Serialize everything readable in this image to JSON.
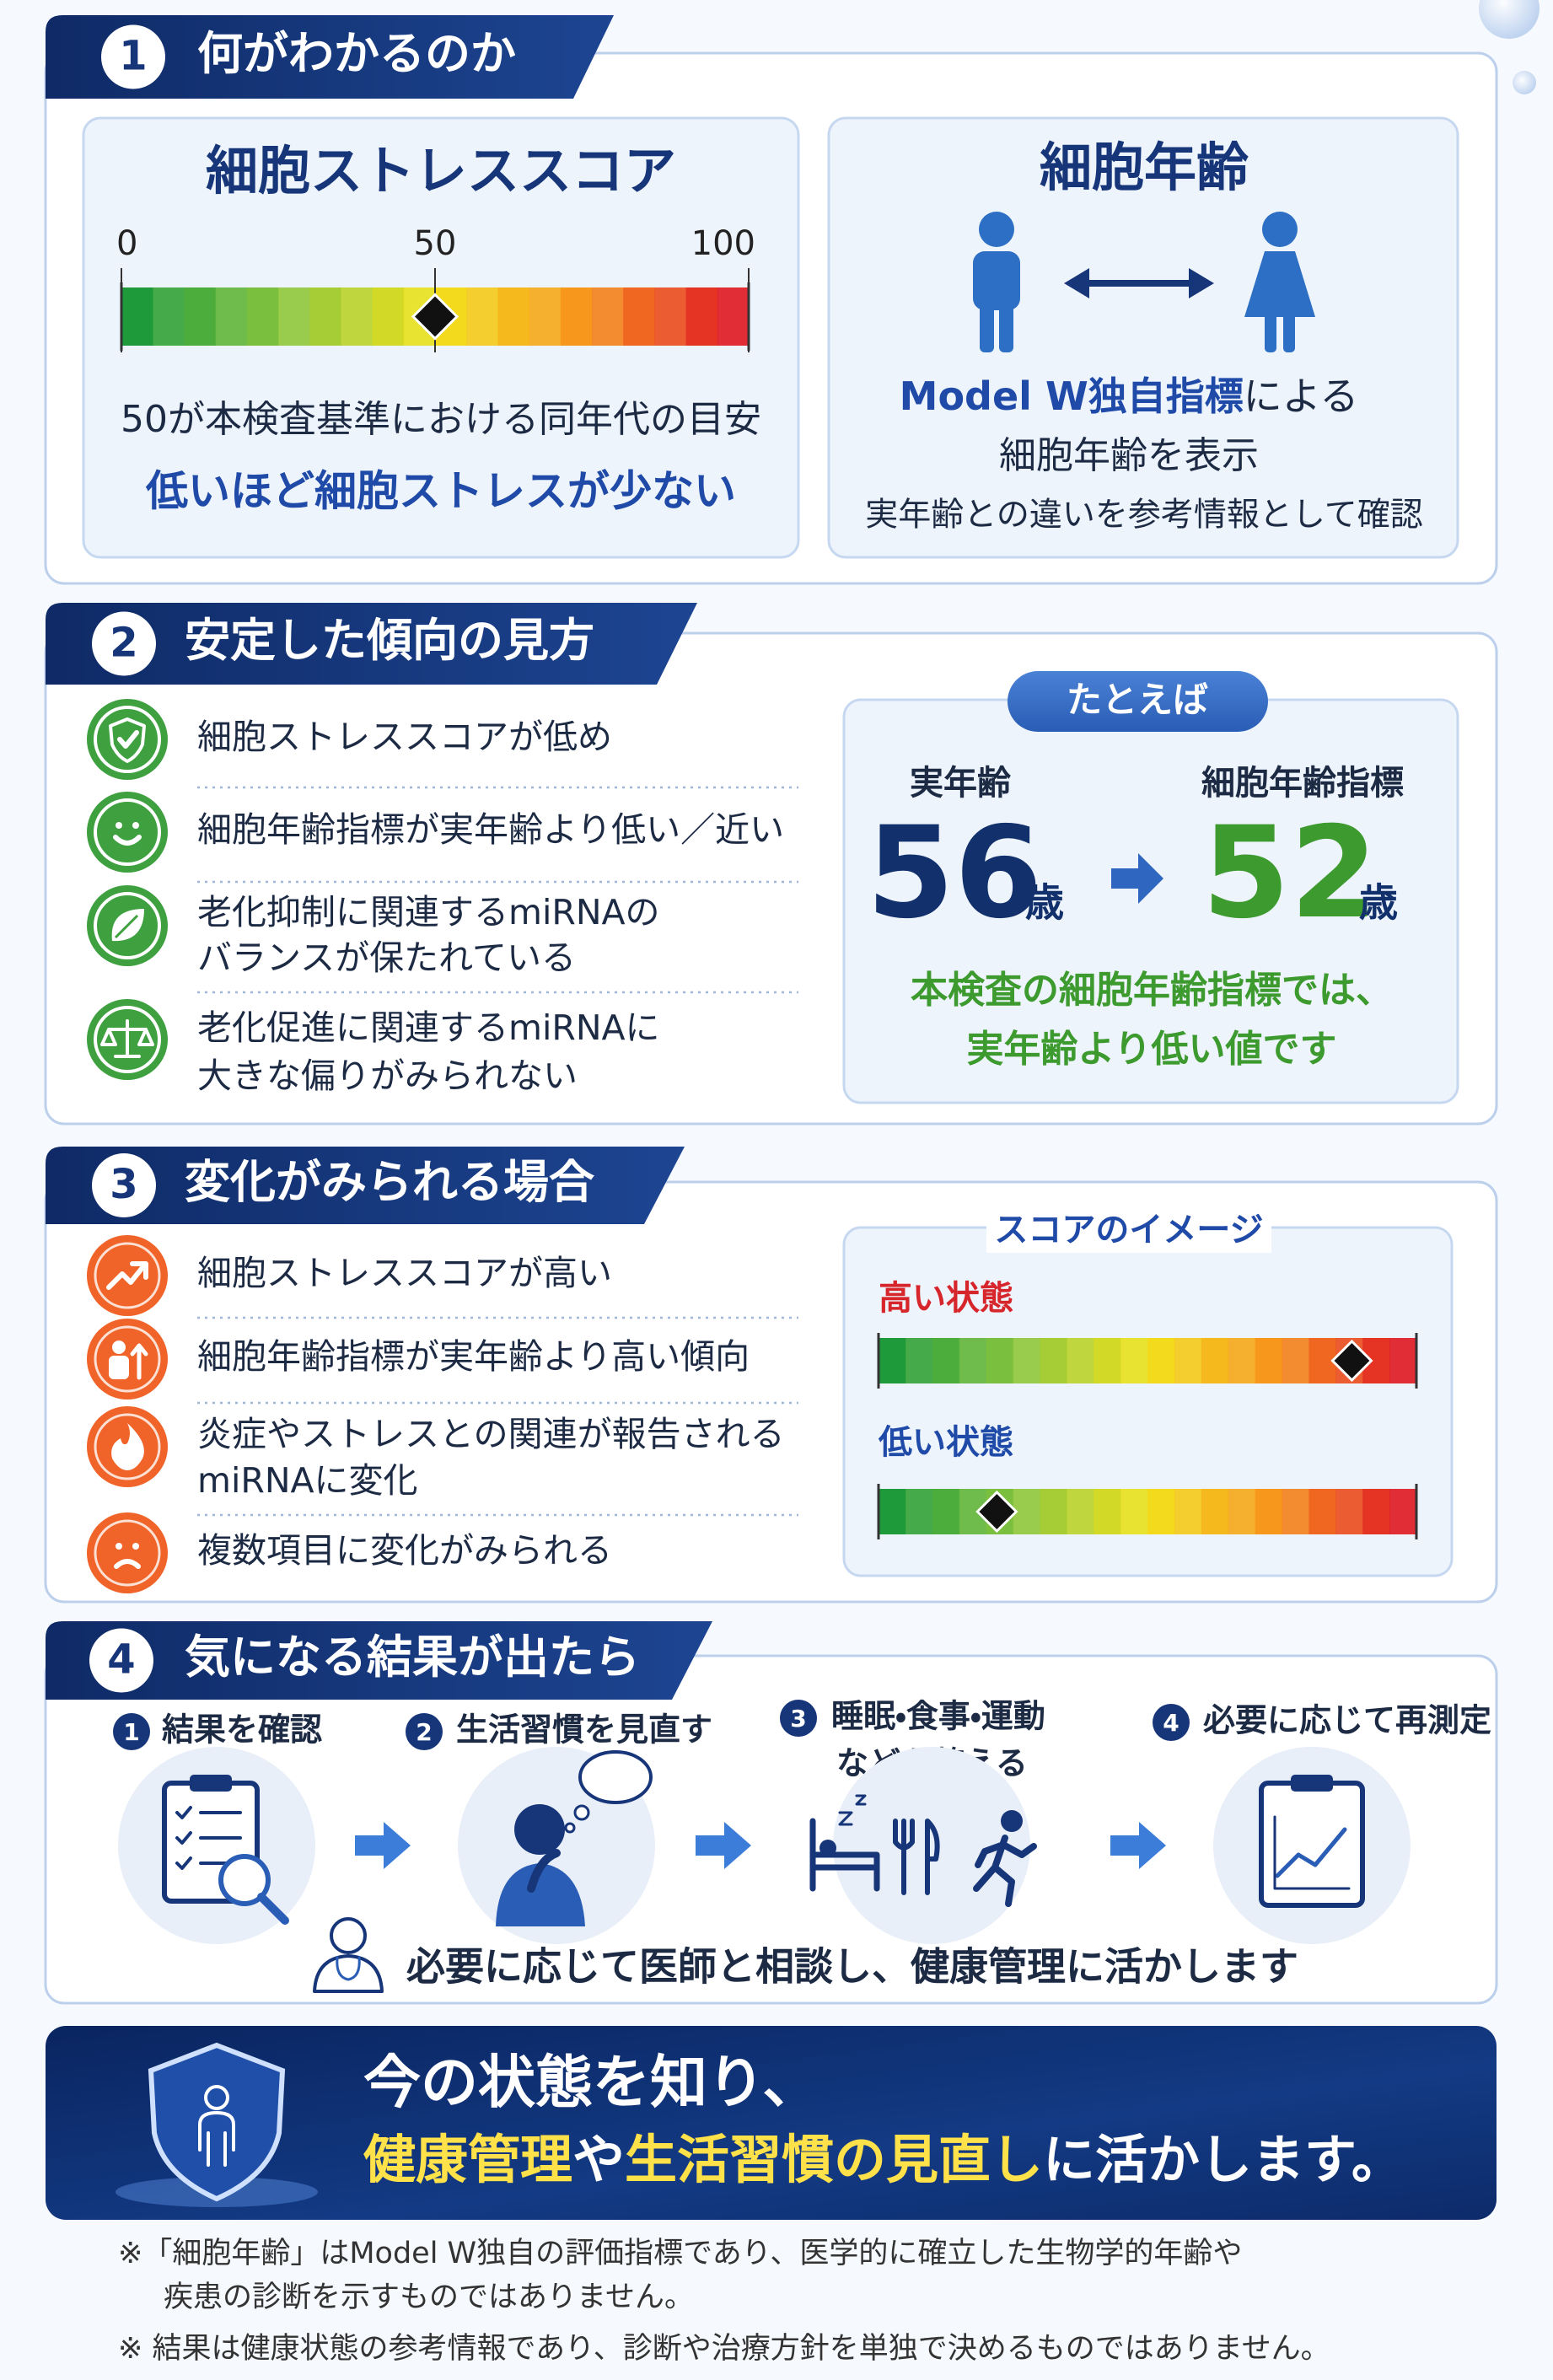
{
  "section1": {
    "number": 1,
    "title": "何がわかるのか",
    "stress_card": {
      "title": "細胞ストレススコア",
      "ticks": [
        0,
        50,
        100
      ],
      "marker": 50,
      "note": "50が本検査基準における同年代の目安",
      "emphasis": "低いほど細胞ストレスが少ない"
    },
    "age_card": {
      "title": "細胞年齢",
      "line1_accent": "Model W独自指標",
      "line1_rest": "による",
      "line2": "細胞年齢を表示",
      "line3": "実年齢との違いを参考情報として確認"
    }
  },
  "section2": {
    "number": 2,
    "title": "安定した傾向の見方",
    "items": [
      {
        "lines": [
          "細胞ストレススコアが低め"
        ]
      },
      {
        "lines": [
          "細胞年齢指標が実年齢より低い／近い"
        ]
      },
      {
        "lines": [
          "老化抑制に関連するmiRNAの",
          "バランスが保たれている"
        ]
      },
      {
        "lines": [
          "老化促進に関連するmiRNAに",
          "大きな偏りがみられない"
        ]
      }
    ],
    "example": {
      "label": "たとえば",
      "actual_label": "実年齢",
      "actual_value": 56,
      "index_label": "細胞年齢指標",
      "index_value": 52,
      "unit": "歳",
      "conclusion": [
        "本検査の細胞年齢指標では、",
        "実年齢より低い値です"
      ]
    }
  },
  "section3": {
    "number": 3,
    "title": "変化がみられる場合",
    "items": [
      {
        "lines": [
          "細胞ストレススコアが高い"
        ]
      },
      {
        "lines": [
          "細胞年齢指標が実年齢より高い傾向"
        ]
      },
      {
        "lines": [
          "炎症やストレスとの関連が報告される",
          "miRNAに変化"
        ]
      },
      {
        "lines": [
          "複数項目に変化がみられる"
        ]
      }
    ],
    "image_card": {
      "title": "スコアのイメージ",
      "high_label": "高い状態",
      "high_marker": 88,
      "low_label": "低い状態",
      "low_marker": 22
    }
  },
  "section4": {
    "number": 4,
    "title": "気になる結果が出たら",
    "steps": [
      {
        "number": 1,
        "lines": [
          "結果を確認"
        ]
      },
      {
        "number": 2,
        "lines": [
          "生活習慣を見直す"
        ]
      },
      {
        "number": 3,
        "lines": [
          "睡眠・食事・運動",
          "などを整える"
        ]
      },
      {
        "number": 4,
        "lines": [
          "必要に応じて再測定"
        ]
      }
    ],
    "consult": "必要に応じて医師と相談し、健康管理に活かします"
  },
  "banner": {
    "line1": "今の状態を知り、",
    "line2": [
      {
        "text": "健康管理",
        "highlight": true
      },
      {
        "text": "や",
        "highlight": false
      },
      {
        "text": "生活習慣の見直し",
        "highlight": true
      },
      {
        "text": "に活かします。",
        "highlight": false
      }
    ]
  },
  "notes": [
    {
      "lines": [
        "※「細胞年齢」はModel W独自の評価指標であり、医学的に確立した生物学的年齢や",
        "疾患の診断を示すものではありません。"
      ]
    },
    {
      "lines": [
        "※ 結果は健康状態の参考情報であり、診断や治療方針を単独で決めるものではありません。"
      ]
    }
  ]
}
